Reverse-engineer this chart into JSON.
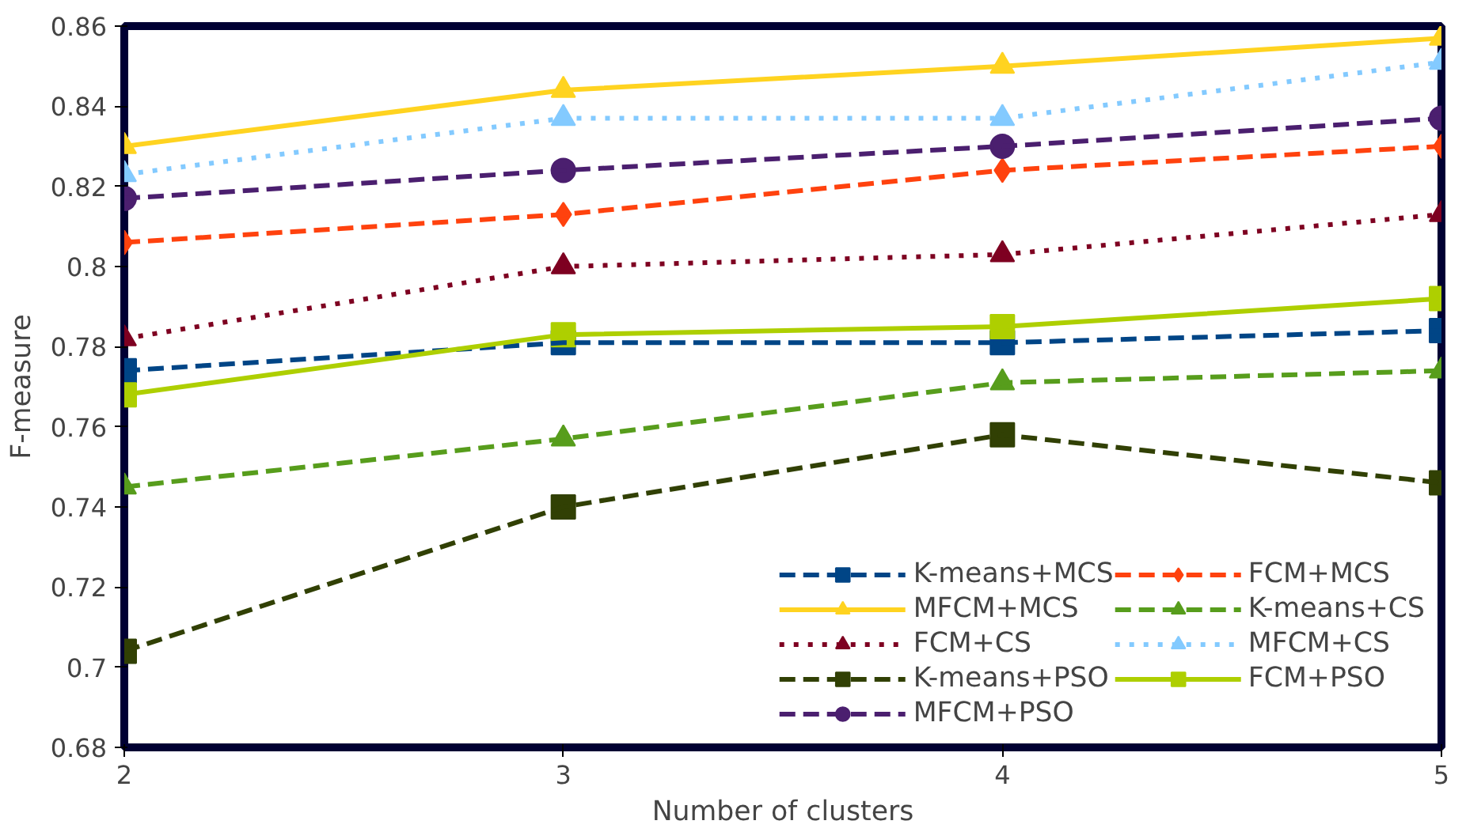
{
  "chart_data": {
    "type": "line",
    "xlabel": "Number of clusters",
    "ylabel": "F-measure",
    "x": [
      2,
      3,
      4,
      5
    ],
    "xlim": [
      2,
      5
    ],
    "xticks": [
      2,
      3,
      4,
      5
    ],
    "ylim": [
      0.68,
      0.86
    ],
    "yticks": [
      0.68,
      0.7,
      0.72,
      0.74,
      0.76,
      0.78,
      0.8,
      0.82,
      0.84,
      0.86
    ],
    "grid": false,
    "legend": "bottom right",
    "series": [
      {
        "name": "K-means+MCS",
        "color": "#004586",
        "marker": "square",
        "line_style": "dashed",
        "values": [
          0.774,
          0.781,
          0.781,
          0.784
        ]
      },
      {
        "name": "FCM+MCS",
        "color": "#ff420e",
        "marker": "diamond",
        "line_style": "dashed",
        "values": [
          0.806,
          0.813,
          0.824,
          0.83
        ]
      },
      {
        "name": "MFCM+MCS",
        "color": "#ffd320",
        "marker": "triangle",
        "line_style": "solid",
        "values": [
          0.83,
          0.844,
          0.85,
          0.857
        ]
      },
      {
        "name": "K-means+CS",
        "color": "#579d1c",
        "marker": "triangle",
        "line_style": "dashed",
        "values": [
          0.745,
          0.757,
          0.771,
          0.774
        ]
      },
      {
        "name": "FCM+CS",
        "color": "#7e0021",
        "marker": "triangle",
        "line_style": "dotted",
        "values": [
          0.782,
          0.8,
          0.803,
          0.813
        ]
      },
      {
        "name": "MFCM+CS",
        "color": "#83caff",
        "marker": "triangle",
        "line_style": "dotted",
        "values": [
          0.823,
          0.837,
          0.837,
          0.851
        ]
      },
      {
        "name": "K-means+PSO",
        "color": "#314004",
        "marker": "square",
        "line_style": "dashed",
        "values": [
          0.704,
          0.74,
          0.758,
          0.746
        ]
      },
      {
        "name": "FCM+PSO",
        "color": "#aecf00",
        "marker": "square",
        "line_style": "solid",
        "values": [
          0.768,
          0.783,
          0.785,
          0.792
        ]
      },
      {
        "name": "MFCM+PSO",
        "color": "#4b1f6f",
        "marker": "circle",
        "line_style": "dashed",
        "values": [
          0.817,
          0.824,
          0.83,
          0.837
        ]
      }
    ]
  }
}
